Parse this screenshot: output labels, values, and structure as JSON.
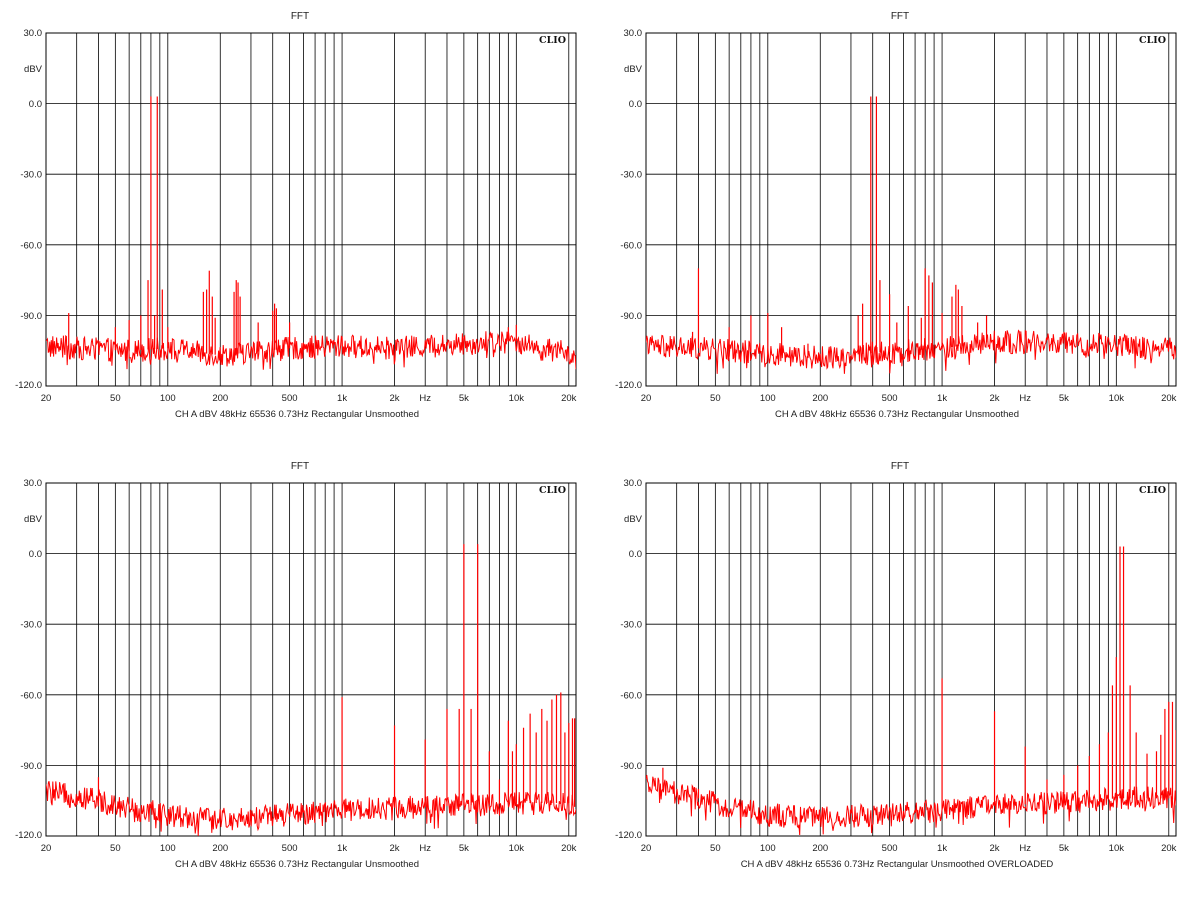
{
  "chart_data": [
    {
      "type": "line",
      "title": "FFT",
      "ylabel": "dBV",
      "xlabel": "Hz",
      "logo": "CLIO",
      "footer": "CH A   dBV   48kHz   65536   0.73Hz   Rectangular   Unsmoothed",
      "xscale": "log",
      "xlim": [
        20,
        22000
      ],
      "ylim": [
        -120,
        30
      ],
      "yticks": [
        "30.0",
        "dBV",
        "0.0",
        "-30.0",
        "-60.0",
        "-90.0",
        "-120.0"
      ],
      "xticks": [
        "20",
        "50",
        "100",
        "200",
        "500",
        "1k",
        "2k",
        "Hz",
        "5k",
        "10k",
        "20k"
      ],
      "grid": true,
      "line_color": "#ff0000",
      "noise_floor": [
        [
          20,
          -103
        ],
        [
          30,
          -104
        ],
        [
          60,
          -105
        ],
        [
          100,
          -104
        ],
        [
          200,
          -107
        ],
        [
          500,
          -104
        ],
        [
          1000,
          -103
        ],
        [
          2000,
          -104
        ],
        [
          5000,
          -102
        ],
        [
          10000,
          -101
        ],
        [
          13000,
          -104
        ],
        [
          20000,
          -106
        ],
        [
          22000,
          -110
        ]
      ],
      "peaks": [
        [
          27,
          -89
        ],
        [
          50,
          -95
        ],
        [
          60,
          -92
        ],
        [
          70,
          -90
        ],
        [
          77,
          -75
        ],
        [
          80,
          3
        ],
        [
          84,
          -90
        ],
        [
          87,
          3
        ],
        [
          93,
          -79
        ],
        [
          100,
          -95
        ],
        [
          160,
          -80
        ],
        [
          167,
          -79
        ],
        [
          173,
          -71
        ],
        [
          180,
          -82
        ],
        [
          187,
          -91
        ],
        [
          240,
          -80
        ],
        [
          247,
          -75
        ],
        [
          253,
          -76
        ],
        [
          260,
          -82
        ],
        [
          330,
          -93
        ],
        [
          400,
          -88
        ],
        [
          410,
          -85
        ],
        [
          420,
          -87
        ],
        [
          500,
          -93
        ],
        [
          1000,
          -99
        ],
        [
          9000,
          -95
        ],
        [
          10000,
          -94
        ]
      ]
    },
    {
      "type": "line",
      "title": "FFT",
      "ylabel": "dBV",
      "xlabel": "Hz",
      "logo": "CLIO",
      "footer": "CH A   dBV   48kHz   65536   0.73Hz   Rectangular   Unsmoothed",
      "xscale": "log",
      "xlim": [
        20,
        22000
      ],
      "ylim": [
        -120,
        30
      ],
      "yticks": [
        "30.0",
        "dBV",
        "0.0",
        "-30.0",
        "-60.0",
        "-90.0",
        "-120.0"
      ],
      "xticks": [
        "20",
        "50",
        "100",
        "200",
        "500",
        "1k",
        "2k",
        "Hz",
        "5k",
        "10k",
        "20k"
      ],
      "grid": true,
      "line_color": "#ff0000",
      "noise_floor": [
        [
          20,
          -103
        ],
        [
          40,
          -104
        ],
        [
          100,
          -106
        ],
        [
          200,
          -108
        ],
        [
          400,
          -106
        ],
        [
          1000,
          -104
        ],
        [
          2000,
          -101
        ],
        [
          5000,
          -102
        ],
        [
          10000,
          -103
        ],
        [
          20000,
          -104
        ],
        [
          22000,
          -104
        ]
      ],
      "peaks": [
        [
          37,
          -97
        ],
        [
          40,
          -70
        ],
        [
          60,
          -95
        ],
        [
          80,
          -90
        ],
        [
          100,
          -89
        ],
        [
          120,
          -95
        ],
        [
          170,
          -102
        ],
        [
          330,
          -90
        ],
        [
          350,
          -85
        ],
        [
          390,
          3
        ],
        [
          420,
          3
        ],
        [
          440,
          -75
        ],
        [
          500,
          -81
        ],
        [
          550,
          -93
        ],
        [
          640,
          -86
        ],
        [
          760,
          -91
        ],
        [
          800,
          -70
        ],
        [
          840,
          -73
        ],
        [
          880,
          -76
        ],
        [
          1000,
          -89
        ],
        [
          1140,
          -82
        ],
        [
          1200,
          -77
        ],
        [
          1240,
          -79
        ],
        [
          1300,
          -86
        ],
        [
          1600,
          -93
        ],
        [
          1800,
          -90
        ],
        [
          2800,
          -98
        ]
      ]
    },
    {
      "type": "line",
      "title": "FFT",
      "ylabel": "dBV",
      "xlabel": "Hz",
      "logo": "CLIO",
      "footer": "CH A   dBV   48kHz   65536   0.73Hz   Rectangular   Unsmoothed",
      "xscale": "log",
      "xlim": [
        20,
        22000
      ],
      "ylim": [
        -120,
        30
      ],
      "yticks": [
        "30.0",
        "dBV",
        "0.0",
        "-30.0",
        "-60.0",
        "-90.0",
        "-120.0"
      ],
      "xticks": [
        "20",
        "50",
        "100",
        "200",
        "500",
        "1k",
        "2k",
        "Hz",
        "5k",
        "10k",
        "20k"
      ],
      "grid": true,
      "line_color": "#ff0000",
      "noise_floor": [
        [
          20,
          -101
        ],
        [
          40,
          -105
        ],
        [
          60,
          -108
        ],
        [
          100,
          -111
        ],
        [
          200,
          -113
        ],
        [
          500,
          -111
        ],
        [
          1000,
          -109
        ],
        [
          2000,
          -108
        ],
        [
          5000,
          -107
        ],
        [
          10000,
          -106
        ],
        [
          20000,
          -106
        ],
        [
          22000,
          -108
        ]
      ],
      "peaks": [
        [
          40,
          -95
        ],
        [
          1000,
          -61
        ],
        [
          2000,
          -73
        ],
        [
          3000,
          -79
        ],
        [
          4000,
          -66
        ],
        [
          4700,
          -66
        ],
        [
          5000,
          4
        ],
        [
          5500,
          -66
        ],
        [
          6000,
          4
        ],
        [
          7000,
          -84
        ],
        [
          8000,
          -96
        ],
        [
          9000,
          -71
        ],
        [
          9500,
          -84
        ],
        [
          10000,
          -81
        ],
        [
          11000,
          -74
        ],
        [
          12000,
          -68
        ],
        [
          13000,
          -76
        ],
        [
          14000,
          -66
        ],
        [
          15000,
          -71
        ],
        [
          16000,
          -62
        ],
        [
          17000,
          -60
        ],
        [
          18000,
          -59
        ],
        [
          19000,
          -76
        ],
        [
          20000,
          -72
        ],
        [
          21000,
          -70
        ],
        [
          21600,
          -70
        ]
      ]
    },
    {
      "type": "line",
      "title": "FFT",
      "ylabel": "dBV",
      "xlabel": "Hz",
      "logo": "CLIO",
      "footer": "CH A   dBV   48kHz   65536   0.73Hz   Rectangular   Unsmoothed   OVERLOADED",
      "xscale": "log",
      "xlim": [
        20,
        22000
      ],
      "ylim": [
        -120,
        30
      ],
      "yticks": [
        "30.0",
        "dBV",
        "0.0",
        "-30.0",
        "-60.0",
        "-90.0",
        "-120.0"
      ],
      "xticks": [
        "20",
        "50",
        "100",
        "200",
        "500",
        "1k",
        "2k",
        "Hz",
        "5k",
        "10k",
        "20k"
      ],
      "grid": true,
      "line_color": "#ff0000",
      "noise_floor": [
        [
          20,
          -99
        ],
        [
          40,
          -104
        ],
        [
          60,
          -108
        ],
        [
          100,
          -111
        ],
        [
          200,
          -112
        ],
        [
          500,
          -111
        ],
        [
          1000,
          -109
        ],
        [
          2000,
          -107
        ],
        [
          5000,
          -106
        ],
        [
          10000,
          -104
        ],
        [
          20000,
          -104
        ],
        [
          22000,
          -105
        ]
      ],
      "peaks": [
        [
          25,
          -91
        ],
        [
          40,
          -100
        ],
        [
          1000,
          -53
        ],
        [
          2000,
          -67
        ],
        [
          3000,
          -82
        ],
        [
          4000,
          -96
        ],
        [
          5000,
          -94
        ],
        [
          6000,
          -90
        ],
        [
          7000,
          -86
        ],
        [
          8000,
          -81
        ],
        [
          9000,
          -76
        ],
        [
          9500,
          -56
        ],
        [
          10000,
          -44
        ],
        [
          10500,
          3
        ],
        [
          11000,
          3
        ],
        [
          12000,
          -56
        ],
        [
          13000,
          -76
        ],
        [
          15000,
          -85
        ],
        [
          17000,
          -84
        ],
        [
          18000,
          -77
        ],
        [
          19000,
          -66
        ],
        [
          20000,
          -63
        ],
        [
          21000,
          -63
        ],
        [
          22000,
          -75
        ]
      ]
    }
  ]
}
